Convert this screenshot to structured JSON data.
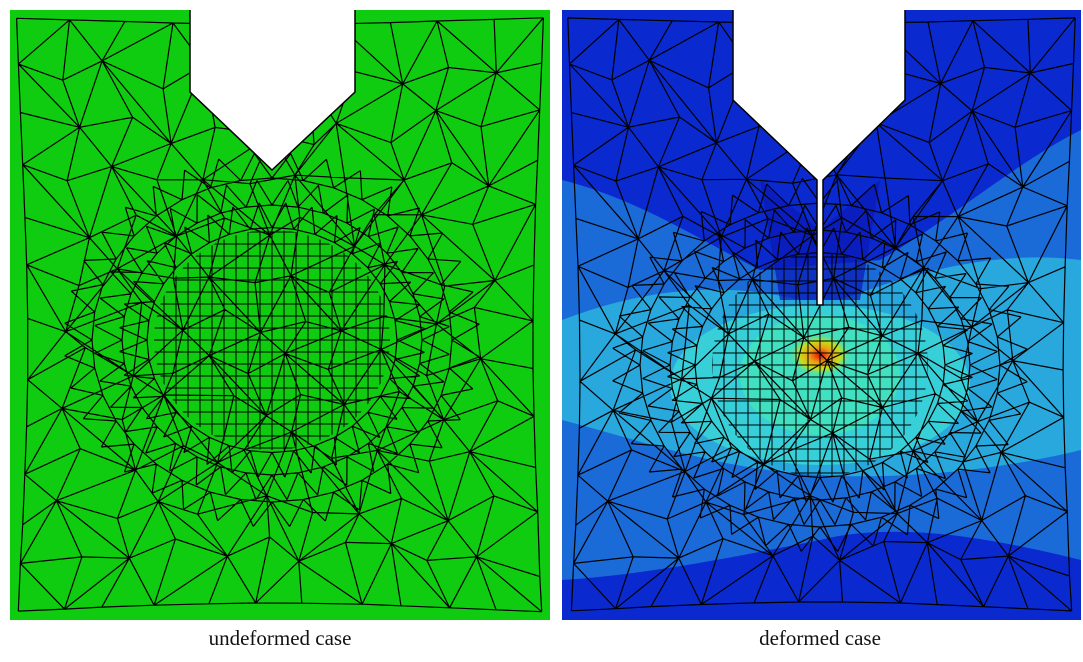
{
  "panels": [
    {
      "caption": "undeformed case"
    },
    {
      "caption": "deformed case"
    }
  ]
}
